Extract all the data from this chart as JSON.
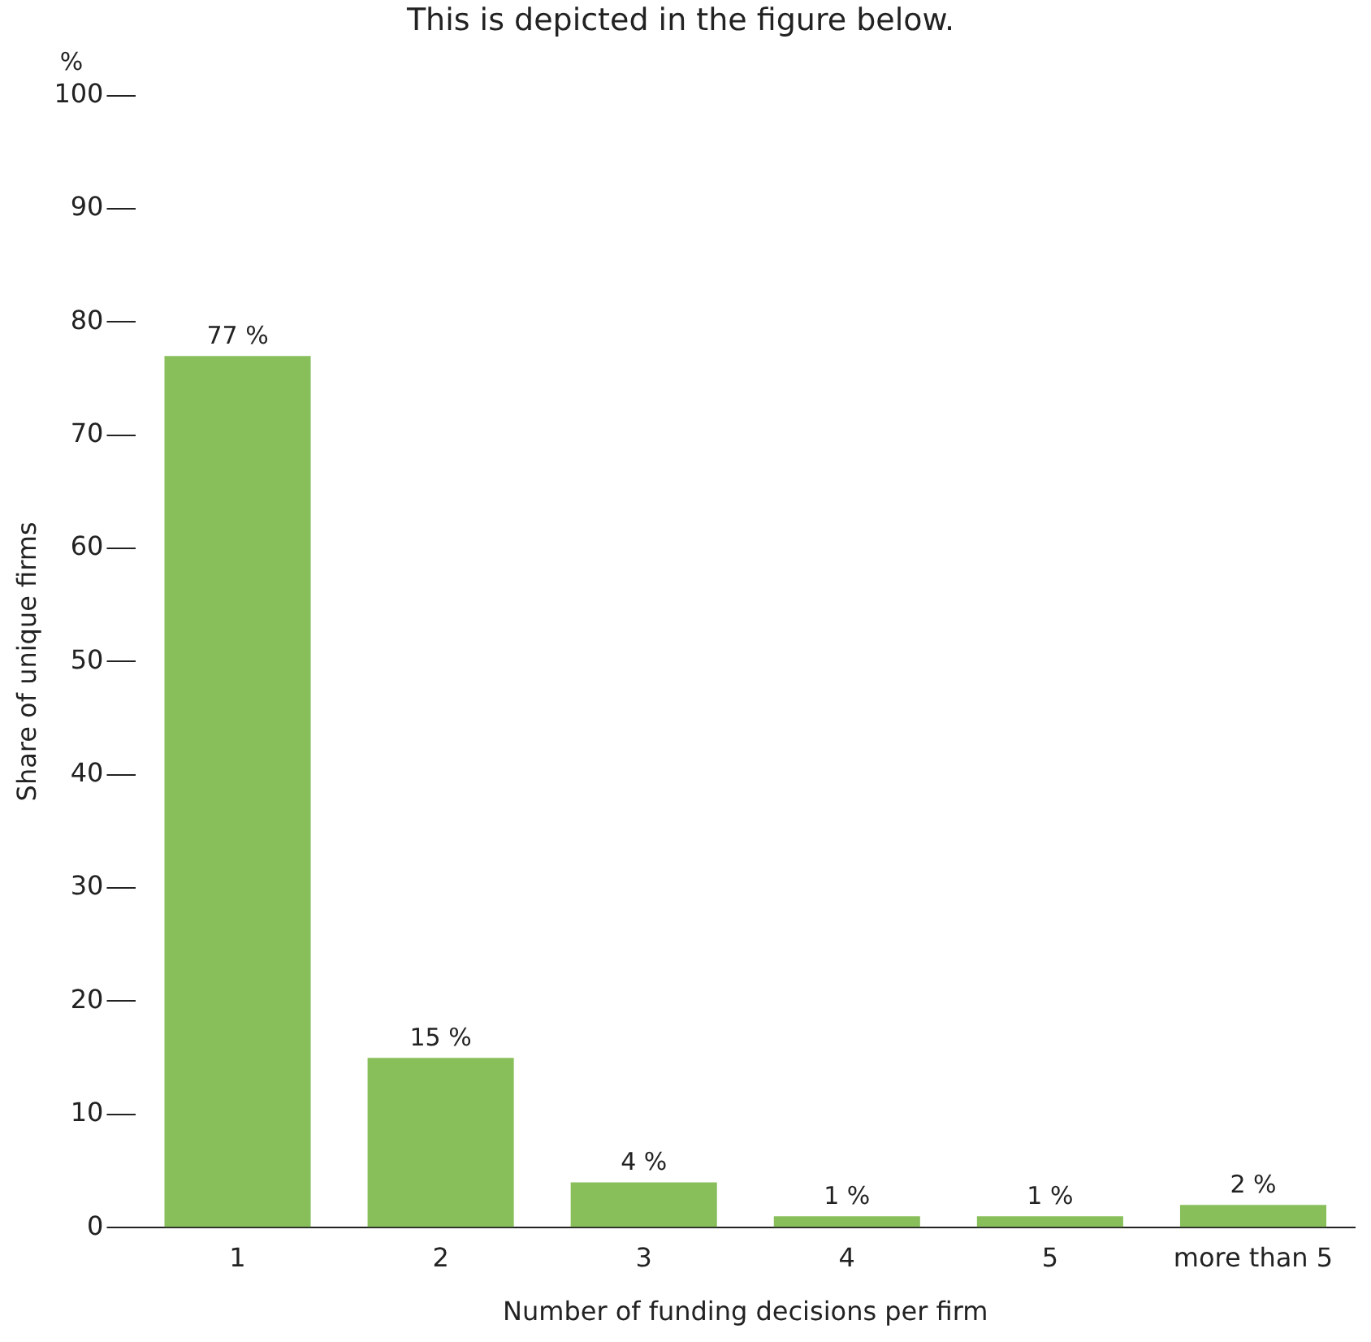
{
  "chart_data": {
    "type": "bar",
    "title": "This is depicted in the figure below.",
    "categories": [
      "1",
      "2",
      "3",
      "4",
      "5",
      "more than 5"
    ],
    "values": [
      77,
      15,
      4,
      1,
      1,
      2
    ],
    "value_labels": [
      "77 %",
      "15 %",
      "4 %",
      "1 %",
      "1 %",
      "2 %"
    ],
    "color": "#88bf5a",
    "xlabel": "Number of funding decisions per firm",
    "ylabel": "Share of unique firms",
    "annotations": [
      "%"
    ],
    "ylim": [
      0,
      100
    ],
    "yticks": [
      0,
      10,
      20,
      30,
      40,
      50,
      60,
      70,
      80,
      90,
      100
    ],
    "grid": false,
    "legend": false
  }
}
